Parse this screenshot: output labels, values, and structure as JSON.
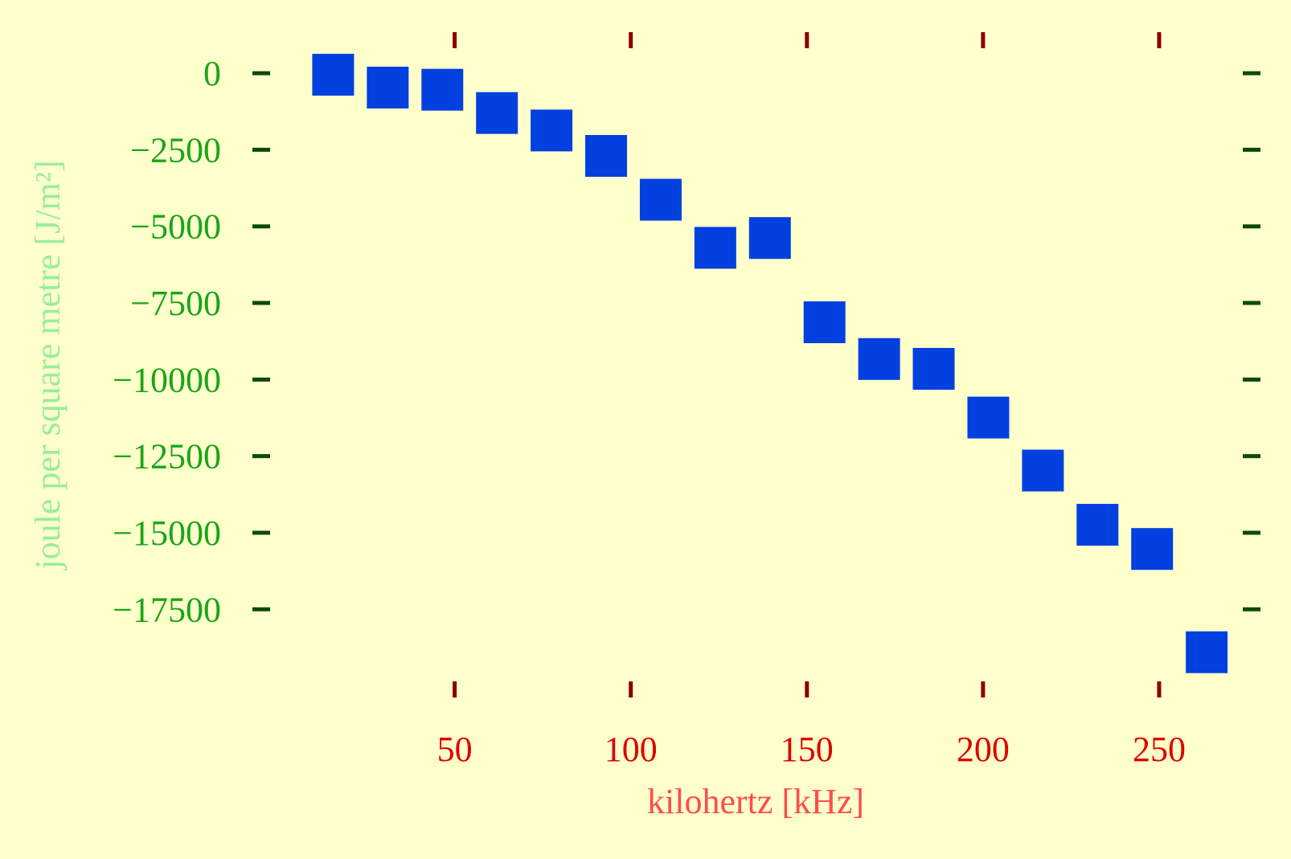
{
  "colors": {
    "background": "#ffffcc",
    "marker": "#0340e0",
    "x_tick": "#8b0000",
    "x_tick_label": "#e00000",
    "x_axis_label": "#ff4c4c",
    "y_tick": "#0c4a0c",
    "y_tick_label": "#1aa51a",
    "y_axis_label": "#99ee99"
  },
  "chart_data": {
    "type": "scatter",
    "marker": "square",
    "title": "",
    "xlabel": "kilohertz [kHz]",
    "ylabel": "joule per square metre [J/m²]",
    "xlim": [
      -2.4,
      272.6
    ],
    "ylim": [
      -20220,
      1130
    ],
    "x_ticks": [
      50,
      100,
      150,
      200,
      250
    ],
    "x_tick_labels": [
      "50",
      "100",
      "150",
      "200",
      "250"
    ],
    "y_ticks": [
      0,
      -2500,
      -5000,
      -7500,
      -10000,
      -12500,
      -15000,
      -17500
    ],
    "y_tick_labels": [
      "0",
      "−2500",
      "−5000",
      "−7500",
      "−10000",
      "−12500",
      "−15000",
      "−17500"
    ],
    "grid": false,
    "legend": false,
    "x": [
      15.5,
      31.0,
      46.5,
      62.0,
      77.5,
      93.0,
      108.5,
      124.0,
      139.5,
      155.0,
      170.5,
      186.0,
      201.5,
      217.0,
      232.5,
      248.0,
      263.5
    ],
    "y": [
      -50,
      -470,
      -540,
      -1300,
      -1870,
      -2700,
      -4130,
      -5700,
      -5380,
      -8130,
      -9330,
      -9650,
      -11240,
      -12970,
      -14740,
      -15530,
      -18900
    ]
  }
}
